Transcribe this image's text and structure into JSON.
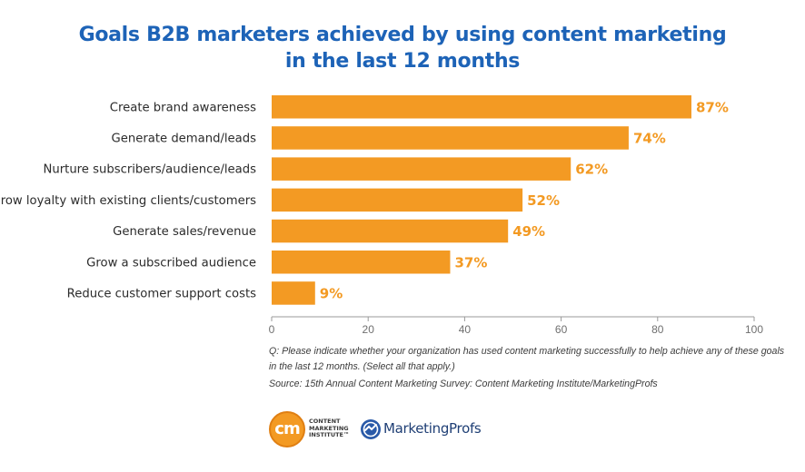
{
  "chart_data": {
    "type": "bar",
    "orientation": "horizontal",
    "title_lines": [
      "Goals B2B marketers achieved by using content marketing",
      "in the last 12 months"
    ],
    "categories": [
      "Create brand awareness",
      "Generate demand/leads",
      "Nurture subscribers/audience/leads",
      "Grow loyalty with existing clients/customers",
      "Generate sales/revenue",
      "Grow a subscribed audience",
      "Reduce customer support costs"
    ],
    "values": [
      87,
      74,
      62,
      52,
      49,
      37,
      9
    ],
    "value_labels": [
      "87%",
      "74%",
      "62%",
      "52%",
      "49%",
      "37%",
      "9%"
    ],
    "xlim": [
      0,
      100
    ],
    "x_ticks": [
      0,
      20,
      40,
      60,
      80,
      100
    ],
    "x_tick_labels": [
      "0",
      "20",
      "40",
      "60",
      "80",
      "100"
    ],
    "grid": false,
    "bar_color": "#f39a23",
    "label_color": "#f39a23"
  },
  "notes": {
    "question_line1": "Q: Please indicate whether your organization has used content marketing successfully to help achieve any of these goals",
    "question_line2": "in the last 12 months. (Select all that apply.)",
    "source": "Source: 15th Annual Content Marketing Survey: Content Marketing Institute/MarketingProfs"
  },
  "logos": {
    "cmi_mark": "cm",
    "cmi_line1": "CONTENT",
    "cmi_line2": "MARKETING",
    "cmi_line3": "INSTITUTE™",
    "mp_name": "MarketingProfs"
  },
  "colors": {
    "title": "#1d63b7",
    "bar": "#f39a23",
    "axis": "#9a9a9a"
  }
}
